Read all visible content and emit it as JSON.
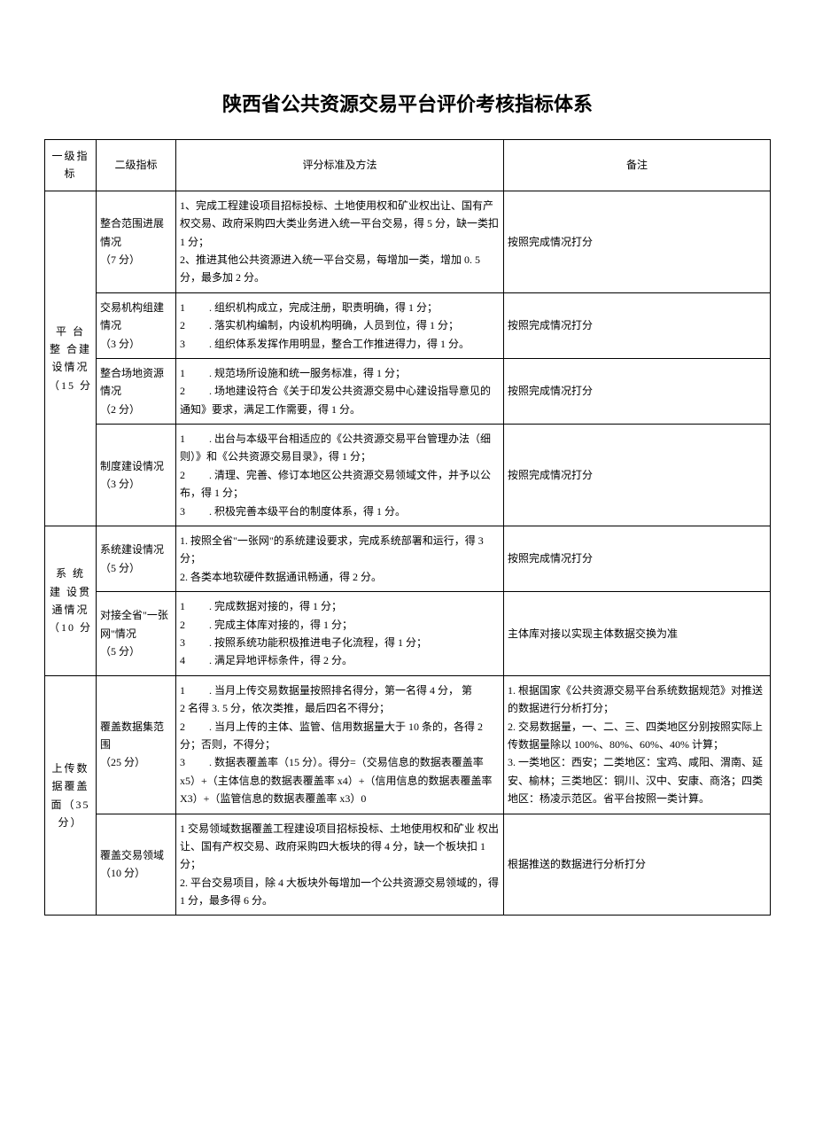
{
  "title": "陕西省公共资源交易平台评价考核指标体系",
  "headers": {
    "level1": "一级指标",
    "level2": "二级指标",
    "criteria": "评分标准及方法",
    "notes": "备注"
  },
  "sections": [
    {
      "level1": "平 台 整 合建设情况\n（15 分",
      "rows": [
        {
          "level2": "整合范围进展情况\n（7 分）",
          "criteria": "1、完成工程建设项目招标投标、土地使用权和矿业权出让、国有产权交易、政府采购四大类业务进入统一平台交易，得 5 分，缺一类扣 1 分；\n2、推进其他公共资源进入统一平台交易，每增加一类，增加 0. 5 分，最多加 2 分。",
          "notes": "按照完成情况打分"
        },
        {
          "level2": "交易机构组建情况\n（3 分）",
          "criteria": "1         . 组织机构成立，完成注册，职责明确，得 1 分；\n2         . 落实机构编制，内设机构明确，人员到位，得 1 分；\n3         . 组织体系发挥作用明显，整合工作推进得力，得 1 分。",
          "notes": "按照完成情况打分"
        },
        {
          "level2": "整合场地资源情况\n（2 分）",
          "criteria": "1         . 规范场所设施和统一服务标准，得 1 分；\n2         . 场地建设符合《关于印发公共资源交易中心建设指导意见的通知》要求，满足工作需要，得 1 分。",
          "notes": "按照完成情况打分"
        },
        {
          "level2": "制度建设情况\n（3 分）",
          "criteria": "1         . 出台与本级平台相适应的《公共资源交易平台管理办法（细则）》和《公共资源交易目录》，得 1 分；\n2         . 清理、完善、修订本地区公共资源交易领域文件，并予以公布，得 1 分；\n3         . 积极完善本级平台的制度体系，得 1 分。",
          "notes": "按照完成情况打分"
        }
      ]
    },
    {
      "level1": "系 统 建 设贯通情况\n（10 分",
      "rows": [
        {
          "level2": "系统建设情况\n（5 分）",
          "criteria": "1. 按照全省\"一张网\"的系统建设要求，完成系统部署和运行，得 3 分；\n2. 各类本地软硬件数据通讯畅通，得 2 分。",
          "notes": "按照完成情况打分"
        },
        {
          "level2": "对接全省\"一张网\"情况\n（5 分）",
          "criteria": "1         . 完成数据对接的，得 1 分；\n2         . 完成主体库对接的，得 1 分；\n3         . 按照系统功能积极推进电子化流程，得 1 分；\n4         . 满足异地评标条件，得 2 分。",
          "notes": "主体库对接以实现主体数据交换为准"
        }
      ]
    },
    {
      "level1": "上传数据覆盖面（35 分）",
      "rows": [
        {
          "level2": "覆盖数据集范围\n（25 分）",
          "criteria": "1         . 当月上传交易数据量按照排名得分，第一名得 4 分， 第\n2 名得 3. 5 分，依次类推，最后四名不得分；\n2         . 当月上传的主体、监管、信用数据量大于 10 条的，各得 2 分；否则，不得分；\n3         . 数据表覆盖率（15 分）。得分=（交易信息的数据表覆盖率 x5）+（主体信息的数据表覆盖率 x4）+（信用信息的数据表覆盖率 X3）+（监管信息的数据表覆盖率 x3）0",
          "notes": "1. 根据国家《公共资源交易平台系统数据规范》对推送的数据进行分析打分；\n2. 交易数据量，一、二、三、四类地区分别按照实际上传数据量除以 100%、80%、60%、40% 计算；\n3. 一类地区：西安；二类地区：宝鸡、咸阳、渭南、延安、榆林；三类地区：铜川、汉中、安康、商洛；四类地区：杨凌示范区。省平台按照一类计算。"
        },
        {
          "level2": "覆盖交易领域\n（10 分）",
          "criteria": "1 交易领域数据覆盖工程建设项目招标投标、土地使用权和矿业 权出让、国有产权交易、政府采购四大板块的得 4 分，缺一个板块扣 1 分；\n2. 平台交易项目，除 4 大板块外每增加一个公共资源交易领域的，得 1 分，最多得 6 分。",
          "notes": "根据推送的数据进行分析打分"
        }
      ]
    }
  ]
}
